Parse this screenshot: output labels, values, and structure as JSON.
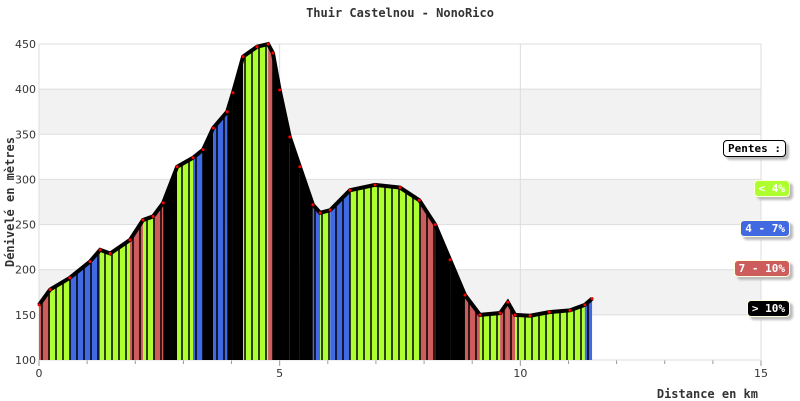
{
  "chart_data": {
    "type": "area",
    "title": "Thuir Castelnou - NonoRico",
    "xlabel": "Distance en km",
    "ylabel": "Dénivelé en mètres",
    "xlim": [
      0,
      15
    ],
    "ylim": [
      100,
      450
    ],
    "xticks": [
      0,
      5,
      10,
      15
    ],
    "yticks": [
      100,
      150,
      200,
      250,
      300,
      350,
      400,
      450
    ],
    "grid": true,
    "x": [
      0,
      0.23,
      0.64,
      1.06,
      1.27,
      1.48,
      1.89,
      2.16,
      2.37,
      2.58,
      2.87,
      3.2,
      3.41,
      3.62,
      3.91,
      4.03,
      4.24,
      4.53,
      4.76,
      4.86,
      5.0,
      5.21,
      5.42,
      5.69,
      5.84,
      6.05,
      6.46,
      6.98,
      7.5,
      7.9,
      8.23,
      8.54,
      8.85,
      9.16,
      9.58,
      9.74,
      9.89,
      10.2,
      10.6,
      11.03,
      11.34,
      11.49
    ],
    "y": [
      161,
      178,
      191,
      209,
      222,
      218,
      233,
      255,
      259,
      274,
      314,
      324,
      333,
      357,
      375,
      396,
      436,
      447,
      450,
      440,
      399,
      347,
      314,
      272,
      263,
      266,
      288,
      294,
      291,
      277,
      250,
      211,
      172,
      150,
      152,
      164,
      150,
      149,
      153,
      155,
      161,
      168
    ],
    "legend": {
      "title": "Pentes :",
      "placement": "right",
      "items": [
        {
          "label": "< 4%",
          "color": "#adff2f",
          "text": "#fff"
        },
        {
          "label": "4 - 7%",
          "color": "#4169e1",
          "text": "#fff"
        },
        {
          "label": "7 - 10%",
          "color": "#cd5c5c",
          "text": "#fff"
        },
        {
          "label": "> 10%",
          "color": "#000000",
          "text": "#fff"
        }
      ]
    }
  }
}
